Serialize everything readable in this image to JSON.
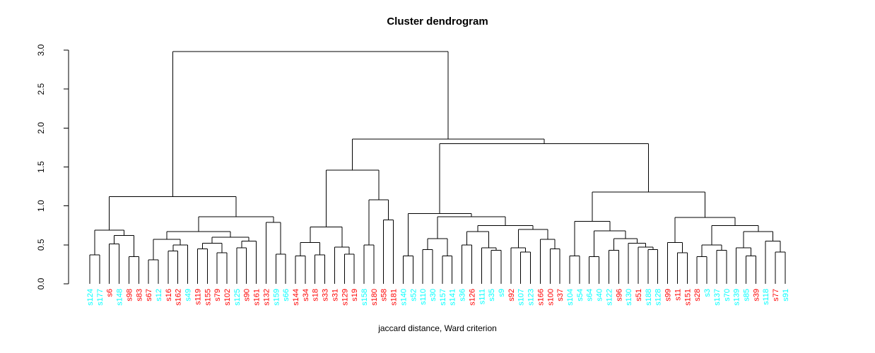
{
  "title": "Cluster dendrogram",
  "subtitle": "jaccard distance, Ward criterion",
  "colors": {
    "cluster_cyan": "#00ffff",
    "cluster_red": "#ff0000",
    "line": "#000000",
    "background": "#ffffff"
  },
  "chart_data": {
    "type": "dendrogram",
    "title": "Cluster dendrogram",
    "xlabel": "jaccard distance, Ward criterion",
    "ylabel": "",
    "ylim": [
      0,
      3.0
    ],
    "yticks": [
      "0.0",
      "0.5",
      "1.0",
      "1.5",
      "2.0",
      "2.5",
      "3.0"
    ],
    "grid": "off",
    "legend": "none",
    "leaf_label_orientation": "vertical",
    "leaves": [
      {
        "label": "s124",
        "color": "#00ffff"
      },
      {
        "label": "s177",
        "color": "#00ffff"
      },
      {
        "label": "s6",
        "color": "#ff0000"
      },
      {
        "label": "s148",
        "color": "#00ffff"
      },
      {
        "label": "s98",
        "color": "#ff0000"
      },
      {
        "label": "s83",
        "color": "#ff0000"
      },
      {
        "label": "s67",
        "color": "#ff0000"
      },
      {
        "label": "s12",
        "color": "#00ffff"
      },
      {
        "label": "s16",
        "color": "#ff0000"
      },
      {
        "label": "s162",
        "color": "#ff0000"
      },
      {
        "label": "s49",
        "color": "#00ffff"
      },
      {
        "label": "s119",
        "color": "#ff0000"
      },
      {
        "label": "s155",
        "color": "#ff0000"
      },
      {
        "label": "s79",
        "color": "#ff0000"
      },
      {
        "label": "s102",
        "color": "#ff0000"
      },
      {
        "label": "s125",
        "color": "#00ffff"
      },
      {
        "label": "s90",
        "color": "#ff0000"
      },
      {
        "label": "s161",
        "color": "#ff0000"
      },
      {
        "label": "s132",
        "color": "#ff0000"
      },
      {
        "label": "s159",
        "color": "#00ffff"
      },
      {
        "label": "s66",
        "color": "#00ffff"
      },
      {
        "label": "s144",
        "color": "#ff0000"
      },
      {
        "label": "s34",
        "color": "#ff0000"
      },
      {
        "label": "s18",
        "color": "#ff0000"
      },
      {
        "label": "s33",
        "color": "#ff0000"
      },
      {
        "label": "s31",
        "color": "#ff0000"
      },
      {
        "label": "s129",
        "color": "#ff0000"
      },
      {
        "label": "s19",
        "color": "#ff0000"
      },
      {
        "label": "s158",
        "color": "#00ffff"
      },
      {
        "label": "s180",
        "color": "#ff0000"
      },
      {
        "label": "s58",
        "color": "#ff0000"
      },
      {
        "label": "s181",
        "color": "#ff0000"
      },
      {
        "label": "s140",
        "color": "#00ffff"
      },
      {
        "label": "s52",
        "color": "#00ffff"
      },
      {
        "label": "s110",
        "color": "#00ffff"
      },
      {
        "label": "s30",
        "color": "#00ffff"
      },
      {
        "label": "s157",
        "color": "#00ffff"
      },
      {
        "label": "s141",
        "color": "#00ffff"
      },
      {
        "label": "s36",
        "color": "#00ffff"
      },
      {
        "label": "s126",
        "color": "#ff0000"
      },
      {
        "label": "s111",
        "color": "#00ffff"
      },
      {
        "label": "s35",
        "color": "#00ffff"
      },
      {
        "label": "s9",
        "color": "#00ffff"
      },
      {
        "label": "s92",
        "color": "#ff0000"
      },
      {
        "label": "s107",
        "color": "#00ffff"
      },
      {
        "label": "s123",
        "color": "#00ffff"
      },
      {
        "label": "s166",
        "color": "#ff0000"
      },
      {
        "label": "s100",
        "color": "#ff0000"
      },
      {
        "label": "s37",
        "color": "#ff0000"
      },
      {
        "label": "s104",
        "color": "#00ffff"
      },
      {
        "label": "s54",
        "color": "#00ffff"
      },
      {
        "label": "s64",
        "color": "#00ffff"
      },
      {
        "label": "s40",
        "color": "#00ffff"
      },
      {
        "label": "s122",
        "color": "#00ffff"
      },
      {
        "label": "s96",
        "color": "#ff0000"
      },
      {
        "label": "s130",
        "color": "#00ffff"
      },
      {
        "label": "s51",
        "color": "#ff0000"
      },
      {
        "label": "s188",
        "color": "#00ffff"
      },
      {
        "label": "s128",
        "color": "#00ffff"
      },
      {
        "label": "s99",
        "color": "#ff0000"
      },
      {
        "label": "s11",
        "color": "#ff0000"
      },
      {
        "label": "s151",
        "color": "#ff0000"
      },
      {
        "label": "s28",
        "color": "#ff0000"
      },
      {
        "label": "s3",
        "color": "#00ffff"
      },
      {
        "label": "s137",
        "color": "#00ffff"
      },
      {
        "label": "s70",
        "color": "#00ffff"
      },
      {
        "label": "s139",
        "color": "#00ffff"
      },
      {
        "label": "s85",
        "color": "#00ffff"
      },
      {
        "label": "s39",
        "color": "#ff0000"
      },
      {
        "label": "s118",
        "color": "#00ffff"
      },
      {
        "label": "s77",
        "color": "#ff0000"
      },
      {
        "label": "s91",
        "color": "#00ffff"
      }
    ],
    "tree": {
      "h": 2.98,
      "c": [
        {
          "h": 1.12,
          "c": [
            {
              "h": 0.69,
              "c": [
                {
                  "h": 0.37,
                  "c": [
                    "s124",
                    "s177"
                  ]
                },
                {
                  "h": 0.62,
                  "c": [
                    {
                      "h": 0.51,
                      "c": [
                        "s6",
                        "s148"
                      ]
                    },
                    {
                      "h": 0.35,
                      "c": [
                        "s98",
                        "s83"
                      ]
                    }
                  ]
                }
              ]
            },
            {
              "h": 0.86,
              "c": [
                {
                  "h": 0.67,
                  "c": [
                    {
                      "h": 0.57,
                      "c": [
                        {
                          "h": 0.31,
                          "c": [
                            "s67",
                            "s12"
                          ]
                        },
                        {
                          "h": 0.5,
                          "c": [
                            {
                              "h": 0.42,
                              "c": [
                                "s16",
                                "s162"
                              ]
                            },
                            "s49"
                          ]
                        }
                      ]
                    },
                    {
                      "h": 0.6,
                      "c": [
                        {
                          "h": 0.52,
                          "c": [
                            {
                              "h": 0.45,
                              "c": [
                                "s119",
                                "s155"
                              ]
                            },
                            {
                              "h": 0.4,
                              "c": [
                                "s79",
                                "s102"
                              ]
                            }
                          ]
                        },
                        {
                          "h": 0.55,
                          "c": [
                            {
                              "h": 0.46,
                              "c": [
                                "s125",
                                "s90"
                              ]
                            },
                            "s161"
                          ]
                        }
                      ]
                    }
                  ]
                },
                {
                  "h": 0.79,
                  "c": [
                    "s132",
                    {
                      "h": 0.38,
                      "c": [
                        "s159",
                        "s66"
                      ]
                    }
                  ]
                }
              ]
            }
          ]
        },
        {
          "h": 1.86,
          "c": [
            {
              "h": 1.46,
              "c": [
                {
                  "h": 0.73,
                  "c": [
                    {
                      "h": 0.53,
                      "c": [
                        {
                          "h": 0.36,
                          "c": [
                            "s144",
                            "s34"
                          ]
                        },
                        {
                          "h": 0.37,
                          "c": [
                            "s18",
                            "s33"
                          ]
                        }
                      ]
                    },
                    {
                      "h": 0.47,
                      "c": [
                        "s31",
                        {
                          "h": 0.38,
                          "c": [
                            "s129",
                            "s19"
                          ]
                        }
                      ]
                    }
                  ]
                },
                {
                  "h": 1.08,
                  "c": [
                    {
                      "h": 0.5,
                      "c": [
                        "s158",
                        "s180"
                      ]
                    },
                    {
                      "h": 0.82,
                      "c": [
                        "s58",
                        "s181"
                      ]
                    }
                  ]
                }
              ]
            },
            {
              "h": 1.8,
              "c": [
                {
                  "h": 0.9,
                  "c": [
                    {
                      "h": 0.36,
                      "c": [
                        "s140",
                        "s52"
                      ]
                    },
                    {
                      "h": 0.86,
                      "c": [
                        {
                          "h": 0.58,
                          "c": [
                            {
                              "h": 0.44,
                              "c": [
                                "s110",
                                "s30"
                              ]
                            },
                            {
                              "h": 0.36,
                              "c": [
                                "s157",
                                "s141"
                              ]
                            }
                          ]
                        },
                        {
                          "h": 0.75,
                          "c": [
                            {
                              "h": 0.67,
                              "c": [
                                {
                                  "h": 0.5,
                                  "c": [
                                    "s36",
                                    "s126"
                                  ]
                                },
                                {
                                  "h": 0.46,
                                  "c": [
                                    "s111",
                                    {
                                      "h": 0.43,
                                      "c": [
                                        "s35",
                                        "s9"
                                      ]
                                    }
                                  ]
                                }
                              ]
                            },
                            {
                              "h": 0.7,
                              "c": [
                                {
                                  "h": 0.46,
                                  "c": [
                                    "s92",
                                    {
                                      "h": 0.41,
                                      "c": [
                                        "s107",
                                        "s123"
                                      ]
                                    }
                                  ]
                                },
                                {
                                  "h": 0.57,
                                  "c": [
                                    "s166",
                                    {
                                      "h": 0.45,
                                      "c": [
                                        "s100",
                                        "s37"
                                      ]
                                    }
                                  ]
                                }
                              ]
                            }
                          ]
                        }
                      ]
                    }
                  ]
                },
                {
                  "h": 1.18,
                  "c": [
                    {
                      "h": 0.8,
                      "c": [
                        {
                          "h": 0.36,
                          "c": [
                            "s104",
                            "s54"
                          ]
                        },
                        {
                          "h": 0.68,
                          "c": [
                            {
                              "h": 0.35,
                              "c": [
                                "s64",
                                "s40"
                              ]
                            },
                            {
                              "h": 0.58,
                              "c": [
                                {
                                  "h": 0.43,
                                  "c": [
                                    "s122",
                                    "s96"
                                  ]
                                },
                                {
                                  "h": 0.52,
                                  "c": [
                                    "s130",
                                    {
                                      "h": 0.47,
                                      "c": [
                                        "s51",
                                        {
                                          "h": 0.44,
                                          "c": [
                                            "s188",
                                            "s128"
                                          ]
                                        }
                                      ]
                                    }
                                  ]
                                }
                              ]
                            }
                          ]
                        }
                      ]
                    },
                    {
                      "h": 0.85,
                      "c": [
                        {
                          "h": 0.53,
                          "c": [
                            "s99",
                            {
                              "h": 0.4,
                              "c": [
                                "s11",
                                "s151"
                              ]
                            }
                          ]
                        },
                        {
                          "h": 0.75,
                          "c": [
                            {
                              "h": 0.5,
                              "c": [
                                {
                                  "h": 0.35,
                                  "c": [
                                    "s28",
                                    "s3"
                                  ]
                                },
                                {
                                  "h": 0.43,
                                  "c": [
                                    "s137",
                                    "s70"
                                  ]
                                }
                              ]
                            },
                            {
                              "h": 0.67,
                              "c": [
                                {
                                  "h": 0.46,
                                  "c": [
                                    "s139",
                                    {
                                      "h": 0.36,
                                      "c": [
                                        "s85",
                                        "s39"
                                      ]
                                    }
                                  ]
                                },
                                {
                                  "h": 0.55,
                                  "c": [
                                    "s118",
                                    {
                                      "h": 0.41,
                                      "c": [
                                        "s77",
                                        "s91"
                                      ]
                                    }
                                  ]
                                }
                              ]
                            }
                          ]
                        }
                      ]
                    }
                  ]
                }
              ]
            }
          ]
        }
      ]
    }
  }
}
